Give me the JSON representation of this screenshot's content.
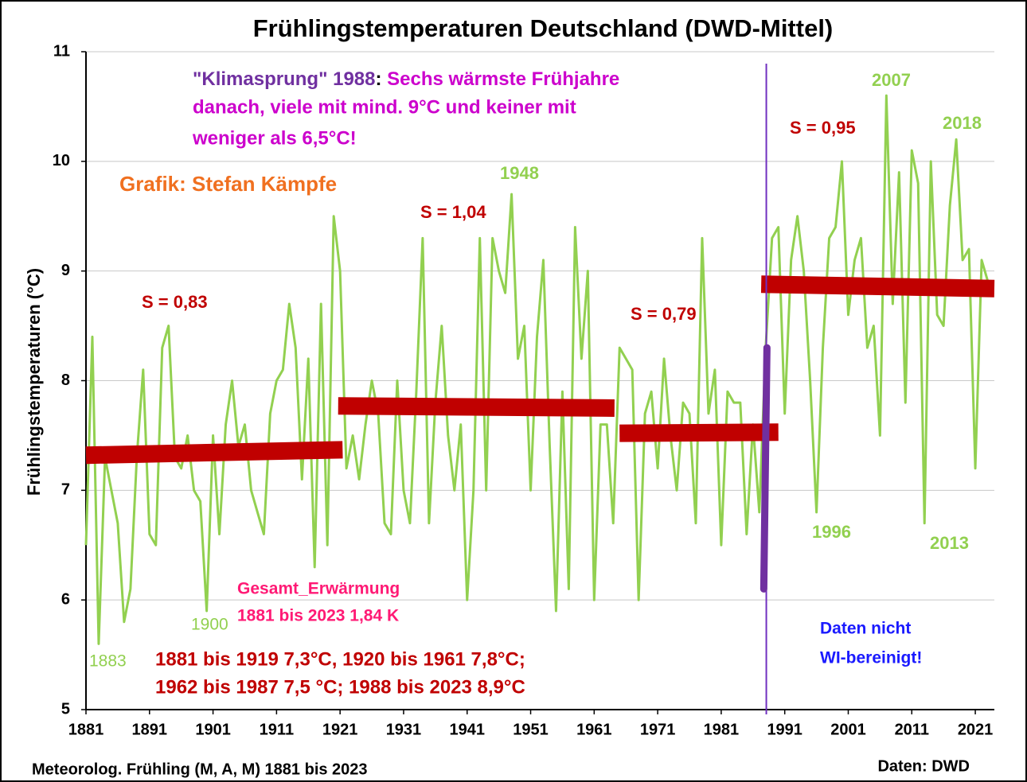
{
  "chart_data": {
    "type": "line",
    "title": "Frühlingstemperaturen Deutschland (DWD-Mittel)",
    "y_label": "Frühlingstemperaturen (°C)",
    "x_label": "Meteorolog. Frühling (M, A, M) 1881 bis 2023",
    "source": "Daten: DWD",
    "xlim": [
      1881,
      2024
    ],
    "ylim": [
      5,
      11
    ],
    "xticks": [
      1881,
      1891,
      1901,
      1911,
      1921,
      1931,
      1941,
      1951,
      1961,
      1971,
      1981,
      1991,
      2001,
      2011,
      2021
    ],
    "yticks": [
      5,
      6,
      7,
      8,
      9,
      10,
      11
    ],
    "grid": true,
    "x": [
      1881,
      1882,
      1883,
      1884,
      1885,
      1886,
      1887,
      1888,
      1889,
      1890,
      1891,
      1892,
      1893,
      1894,
      1895,
      1896,
      1897,
      1898,
      1899,
      1900,
      1901,
      1902,
      1903,
      1904,
      1905,
      1906,
      1907,
      1908,
      1909,
      1910,
      1911,
      1912,
      1913,
      1914,
      1915,
      1916,
      1917,
      1918,
      1919,
      1920,
      1921,
      1922,
      1923,
      1924,
      1925,
      1926,
      1927,
      1928,
      1929,
      1930,
      1931,
      1932,
      1933,
      1934,
      1935,
      1936,
      1937,
      1938,
      1939,
      1940,
      1941,
      1942,
      1943,
      1944,
      1945,
      1946,
      1947,
      1948,
      1949,
      1950,
      1951,
      1952,
      1953,
      1954,
      1955,
      1956,
      1957,
      1958,
      1959,
      1960,
      1961,
      1962,
      1963,
      1964,
      1965,
      1966,
      1967,
      1968,
      1969,
      1970,
      1971,
      1972,
      1973,
      1974,
      1975,
      1976,
      1977,
      1978,
      1979,
      1980,
      1981,
      1982,
      1983,
      1984,
      1985,
      1986,
      1987,
      1988,
      1989,
      1990,
      1991,
      1992,
      1993,
      1994,
      1995,
      1996,
      1997,
      1998,
      1999,
      2000,
      2001,
      2002,
      2003,
      2004,
      2005,
      2006,
      2007,
      2008,
      2009,
      2010,
      2011,
      2012,
      2013,
      2014,
      2015,
      2016,
      2017,
      2018,
      2019,
      2020,
      2021,
      2022,
      2023
    ],
    "series": [
      {
        "color": "#92d050",
        "values": [
          6.5,
          8.4,
          5.6,
          7.3,
          7.0,
          6.7,
          5.8,
          6.1,
          7.3,
          8.1,
          6.6,
          6.5,
          8.3,
          8.5,
          7.3,
          7.2,
          7.5,
          7.0,
          6.9,
          5.9,
          7.5,
          6.6,
          7.6,
          8.0,
          7.4,
          7.6,
          7.0,
          6.8,
          6.6,
          7.7,
          8.0,
          8.1,
          8.7,
          8.3,
          7.1,
          8.2,
          6.3,
          8.7,
          6.5,
          9.5,
          9.0,
          7.2,
          7.5,
          7.1,
          7.6,
          8.0,
          7.7,
          6.7,
          6.6,
          8.0,
          7.0,
          6.7,
          7.9,
          9.3,
          6.7,
          7.8,
          8.5,
          7.5,
          7.0,
          7.6,
          6.0,
          7.0,
          9.3,
          7.0,
          9.3,
          9.0,
          8.8,
          9.7,
          8.2,
          8.5,
          7.0,
          8.4,
          9.1,
          7.4,
          5.9,
          7.9,
          6.1,
          9.4,
          8.2,
          9.0,
          6.0,
          7.6,
          7.6,
          6.7,
          8.3,
          8.2,
          8.1,
          6.0,
          7.7,
          7.9,
          7.2,
          8.2,
          7.5,
          7.0,
          7.8,
          7.7,
          6.7,
          9.3,
          7.7,
          8.1,
          6.5,
          7.9,
          7.8,
          7.8,
          6.6,
          7.6,
          6.8,
          8.3,
          9.3,
          9.4,
          7.7,
          9.1,
          9.5,
          9.0,
          8.0,
          6.8,
          8.3,
          9.3,
          9.4,
          10.0,
          8.6,
          9.1,
          9.3,
          8.3,
          8.5,
          7.5,
          10.6,
          8.7,
          9.9,
          7.8,
          10.1,
          9.8,
          6.7,
          10.0,
          8.6,
          8.5,
          9.6,
          10.2,
          9.1,
          9.2,
          7.2,
          9.1,
          8.9
        ]
      }
    ],
    "trend_lines": [
      {
        "color": "#c00000",
        "x": [
          1881,
          1921.4
        ],
        "y": [
          7.32,
          7.37
        ]
      },
      {
        "color": "#c00000",
        "x": [
          1920.7,
          1964.2
        ],
        "y": [
          7.77,
          7.75
        ]
      },
      {
        "color": "#c00000",
        "x": [
          1965,
          1990
        ],
        "y": [
          7.52,
          7.53
        ]
      },
      {
        "color": "#c00000",
        "x": [
          1987.3,
          2024
        ],
        "y": [
          8.88,
          8.84
        ]
      }
    ],
    "jump_line": {
      "color": "#7030a0",
      "x": [
        1987.7,
        1988.2
      ],
      "y": [
        6.1,
        8.3
      ]
    },
    "marker_line": {
      "color": "#7030c0",
      "x": 1988.1
    },
    "annotations": [
      {
        "text": "\"Klimasprung\" 1988",
        "color": "#7030a0"
      },
      {
        "text": ":",
        "color": "#000000"
      },
      {
        "text": " Sechs wärmste Frühjahre",
        "color": "#cc00cc"
      },
      {
        "text": "danach, viele mit mind. 9°C und keiner mit",
        "color": "#cc00cc"
      },
      {
        "text": "weniger als 6,5°C!",
        "color": "#cc00cc"
      },
      {
        "text": "Grafik: Stefan Kämpfe",
        "color": "#f07020"
      },
      {
        "text": "S = 0,83",
        "color": "#c00000"
      },
      {
        "text": "S = 1,04",
        "color": "#c00000"
      },
      {
        "text": "S = 0,79",
        "color": "#c00000"
      },
      {
        "text": "S = 0,95",
        "color": "#c00000"
      },
      {
        "text": "Gesamt_Erwärmung",
        "color": "#ff1a75"
      },
      {
        "text": "1881 bis 2023 1,84 K",
        "color": "#ff1a75"
      },
      {
        "text": "1881 bis 1919 7,3°C, 1920 bis 1961 7,8°C;",
        "color": "#c00000"
      },
      {
        "text": "1962 bis 1987 7,5 °C; 1988 bis 2023 8,9°C",
        "color": "#c00000"
      },
      {
        "text": "Daten nicht",
        "color": "#1a1aff"
      },
      {
        "text": "WI-bereinigt!",
        "color": "#1a1aff"
      },
      {
        "text": "1883",
        "color": "#92d050"
      },
      {
        "text": "1900",
        "color": "#92d050"
      },
      {
        "text": "1948",
        "color": "#92d050"
      },
      {
        "text": "1996",
        "color": "#92d050"
      },
      {
        "text": "2007",
        "color": "#92d050"
      },
      {
        "text": "2013",
        "color": "#92d050"
      },
      {
        "text": "2018",
        "color": "#92d050"
      }
    ]
  }
}
